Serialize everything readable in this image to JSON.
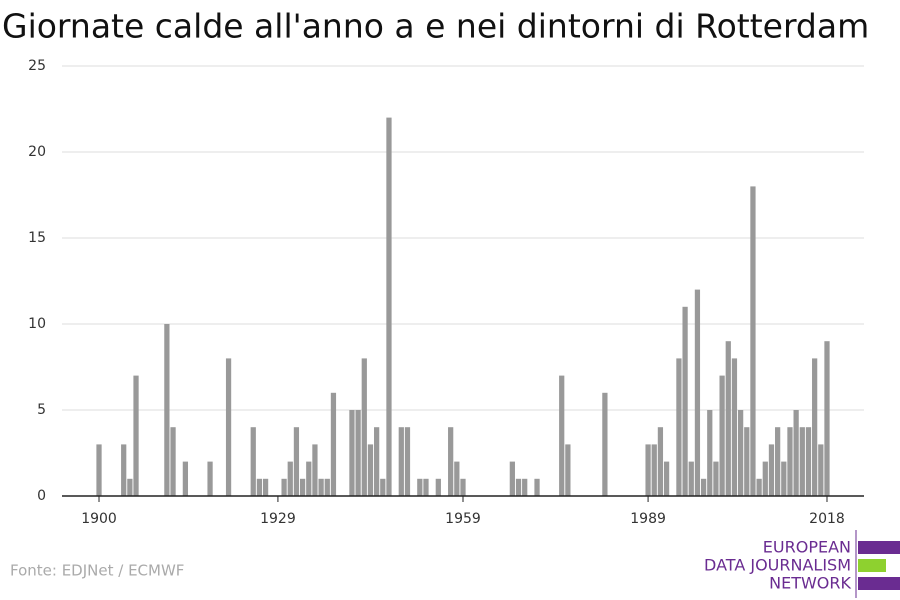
{
  "chart_data": {
    "type": "bar",
    "title": "Giornate calde all'anno a e nei dintorni di Rotterdam",
    "source": "Fonte: EDJNet / ECMWF",
    "logo": [
      "EUROPEAN",
      "DATA JOURNALISM",
      "NETWORK"
    ],
    "color": "#999999",
    "x": [
      1900,
      1904,
      1905,
      1906,
      1911,
      1912,
      1914,
      1918,
      1921,
      1925,
      1926,
      1927,
      1930,
      1931,
      1932,
      1933,
      1934,
      1935,
      1936,
      1937,
      1938,
      1941,
      1942,
      1943,
      1944,
      1945,
      1946,
      1947,
      1949,
      1950,
      1952,
      1953,
      1955,
      1957,
      1958,
      1959,
      1967,
      1968,
      1969,
      1971,
      1975,
      1976,
      1982,
      1989,
      1990,
      1991,
      1992,
      1994,
      1995,
      1996,
      1997,
      1998,
      1999,
      2000,
      2001,
      2002,
      2003,
      2004,
      2005,
      2006,
      2007,
      2008,
      2009,
      2010,
      2011,
      2012,
      2013,
      2014,
      2015,
      2016,
      2017,
      2018
    ],
    "values": [
      3,
      3,
      1,
      7,
      10,
      4,
      2,
      2,
      8,
      4,
      1,
      1,
      1,
      2,
      4,
      1,
      2,
      3,
      1,
      1,
      6,
      5,
      5,
      8,
      3,
      4,
      1,
      22,
      4,
      4,
      1,
      1,
      1,
      4,
      2,
      1,
      2,
      1,
      1,
      1,
      7,
      3,
      6,
      3,
      3,
      4,
      2,
      8,
      11,
      2,
      12,
      1,
      5,
      2,
      7,
      9,
      8,
      5,
      4,
      18,
      1,
      2,
      3,
      4,
      2,
      4,
      5,
      4,
      4,
      8,
      3,
      9
    ],
    "xlim": [
      1894,
      2024
    ],
    "xticks": [
      1900,
      1929,
      1959,
      1989,
      2018
    ],
    "ylim": [
      0,
      25
    ],
    "yticks": [
      0,
      5,
      10,
      15,
      20,
      25
    ],
    "grid": true
  }
}
